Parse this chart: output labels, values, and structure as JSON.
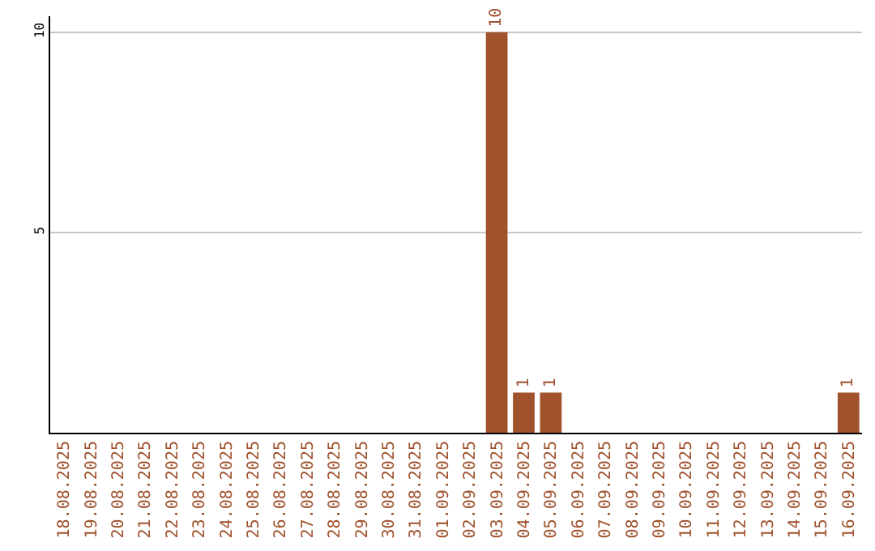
{
  "chart_data": {
    "type": "bar",
    "categories": [
      "18.08.2025",
      "19.08.2025",
      "20.08.2025",
      "21.08.2025",
      "22.08.2025",
      "23.08.2025",
      "24.08.2025",
      "25.08.2025",
      "26.08.2025",
      "27.08.2025",
      "28.08.2025",
      "29.08.2025",
      "30.08.2025",
      "31.08.2025",
      "01.09.2025",
      "02.09.2025",
      "03.09.2025",
      "04.09.2025",
      "05.09.2025",
      "06.09.2025",
      "07.09.2025",
      "08.09.2025",
      "09.09.2025",
      "10.09.2025",
      "11.09.2025",
      "12.09.2025",
      "13.09.2025",
      "14.09.2025",
      "15.09.2025",
      "16.09.2025"
    ],
    "values": [
      0,
      0,
      0,
      0,
      0,
      0,
      0,
      0,
      0,
      0,
      0,
      0,
      0,
      0,
      0,
      0,
      10,
      1,
      1,
      0,
      0,
      0,
      0,
      0,
      0,
      0,
      0,
      0,
      0,
      1
    ],
    "value_labels": [
      null,
      null,
      null,
      null,
      null,
      null,
      null,
      null,
      null,
      null,
      null,
      null,
      null,
      null,
      null,
      null,
      "10",
      "1",
      "1",
      null,
      null,
      null,
      null,
      null,
      null,
      null,
      null,
      null,
      null,
      "1"
    ],
    "color": "#a0522d",
    "ylim": [
      0,
      10.4
    ],
    "yticks": [
      5,
      10
    ],
    "grid": "y",
    "legend": false
  }
}
